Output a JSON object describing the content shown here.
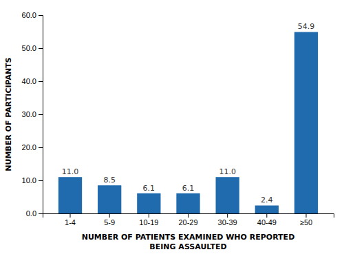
{
  "chart_data": {
    "type": "bar",
    "categories": [
      "1-4",
      "5-9",
      "10-19",
      "20-29",
      "30-39",
      "40-49",
      "≥50"
    ],
    "values": [
      11.0,
      8.5,
      6.1,
      6.1,
      11.0,
      2.4,
      54.9
    ],
    "value_labels": [
      "11.0",
      "8.5",
      "6.1",
      "6.1",
      "11.0",
      "2.4",
      "54.9"
    ],
    "data_labels": true,
    "color": "#1f6bae",
    "xlabel": "NUMBER OF PATIENTS EXAMINED WHO REPORTED\nBEING ASSAULTED",
    "ylabel": "NUMBER OF PARTICIPANTS",
    "ylim": [
      0,
      60
    ],
    "yticks": [
      {
        "value": 0.0,
        "label": "0.0"
      },
      {
        "value": 10.0,
        "label": "10.0"
      },
      {
        "value": 20.0,
        "label": "20.0"
      },
      {
        "value": 30.0,
        "label": "30.0"
      },
      {
        "value": 40.0,
        "label": "40.0"
      },
      {
        "value": 50.0,
        "label": "50.0"
      },
      {
        "value": 60.0,
        "label": "60.0"
      }
    ],
    "grid": false
  }
}
